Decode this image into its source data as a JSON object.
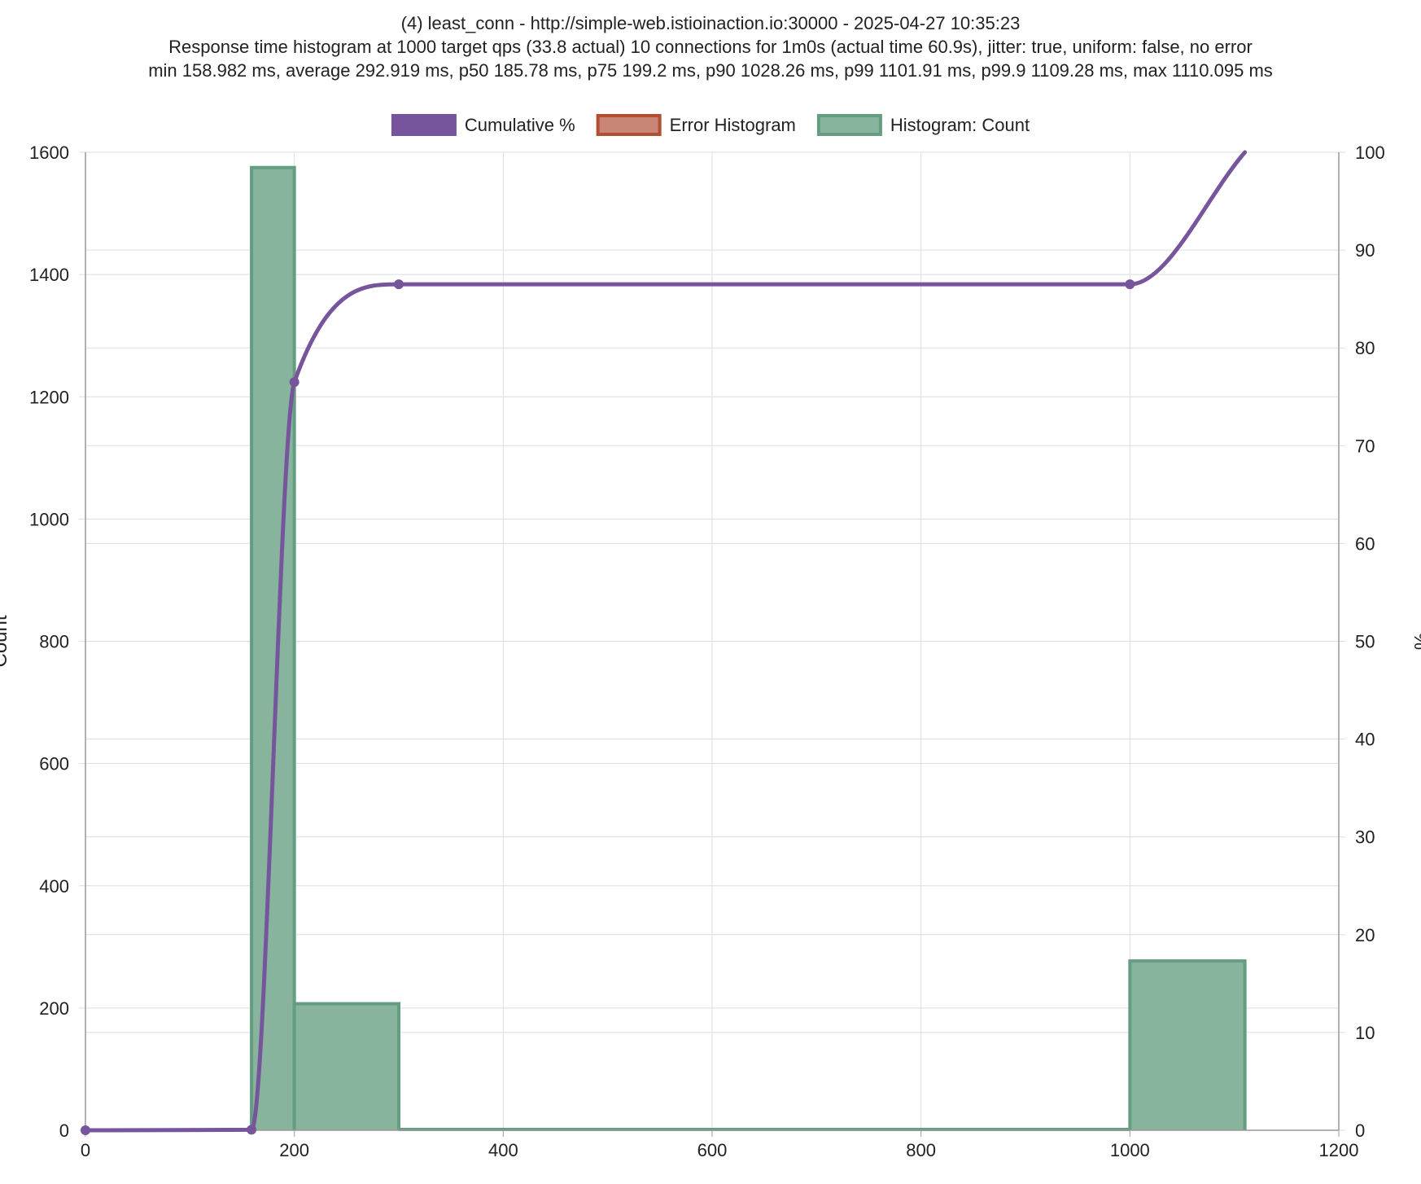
{
  "title_lines": [
    "(4) least_conn - http://simple-web.istioinaction.io:30000 - 2025-04-27 10:35:23",
    "Response time histogram at 1000 target qps (33.8 actual) 10 connections for 1m0s (actual time 60.9s), jitter: true, uniform: false, no error",
    "min 158.982 ms, average 292.919 ms, p50 185.78 ms, p75 199.2 ms, p90 1028.26 ms, p99 1101.91 ms, p99.9 1109.28 ms, max 1110.095 ms"
  ],
  "colors": {
    "cumulative": "#76559c",
    "error_fill": "#c98575",
    "error_border": "#b24f33",
    "histogram_fill": "#88b49d",
    "histogram_border": "#649d7f",
    "grid": "#dddddd",
    "axis": "#999999"
  },
  "chart_data": {
    "type": "bar",
    "legend": {
      "placement": "top-center",
      "entries": [
        {
          "label": "Cumulative %",
          "color_key": "cumulative"
        },
        {
          "label": "Error Histogram",
          "color_key": "error"
        },
        {
          "label": "Histogram: Count",
          "color_key": "histogram"
        }
      ]
    },
    "x_axis": {
      "label": "",
      "range": [
        0,
        1200
      ],
      "ticks": [
        "0",
        "200",
        "400",
        "600",
        "800",
        "1000",
        "1200"
      ]
    },
    "y_left": {
      "label": "Count",
      "range": [
        0,
        1600
      ],
      "ticks": [
        "0",
        "200",
        "400",
        "600",
        "800",
        "1000",
        "1200",
        "1400",
        "1600"
      ]
    },
    "y_right": {
      "label": "%",
      "range": [
        0,
        100
      ],
      "ticks": [
        "0",
        "10",
        "20",
        "30",
        "40",
        "50",
        "60",
        "70",
        "80",
        "90",
        "100"
      ]
    },
    "grid": true,
    "series": [
      {
        "name": "Histogram: Count",
        "type": "histogram",
        "bins": [
          {
            "start": 0,
            "end": 159,
            "count": 0
          },
          {
            "start": 159,
            "end": 200,
            "count": 1575
          },
          {
            "start": 200,
            "end": 300,
            "count": 207
          },
          {
            "start": 300,
            "end": 1000,
            "count": 0
          },
          {
            "start": 1000,
            "end": 1110.095,
            "count": 277
          }
        ]
      },
      {
        "name": "Cumulative %",
        "type": "line",
        "points": [
          {
            "x": 0,
            "y": 0
          },
          {
            "x": 158.982,
            "y": 0.05
          },
          {
            "x": 200,
            "y": 76.5
          },
          {
            "x": 300,
            "y": 86.5
          },
          {
            "x": 1000,
            "y": 86.5
          },
          {
            "x": 1110.095,
            "y": 100
          }
        ]
      },
      {
        "name": "Error Histogram",
        "type": "histogram",
        "bins": []
      }
    ]
  }
}
